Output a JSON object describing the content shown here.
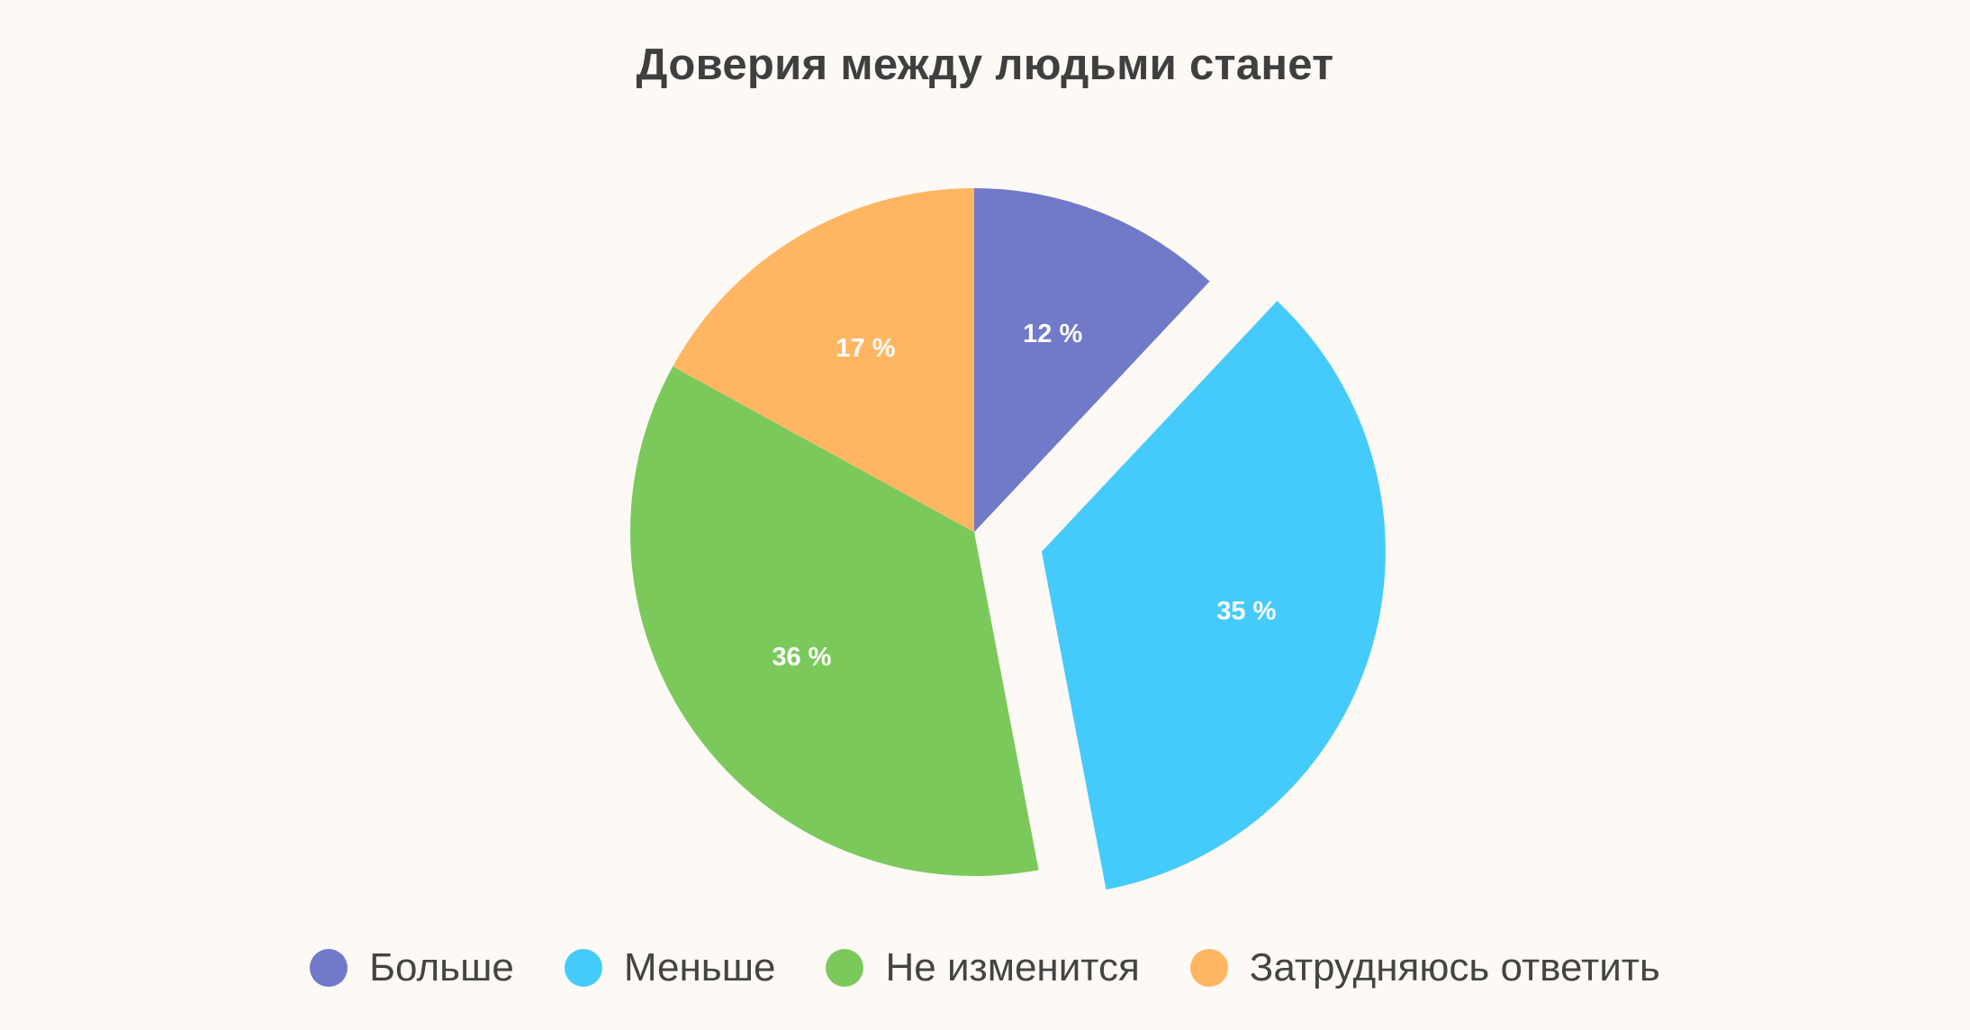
{
  "chart_data": {
    "type": "pie",
    "title": "Доверия между людьми станет",
    "categories": [
      "Больше",
      "Меньше",
      "Не изменится",
      "Затрудняюсь ответить"
    ],
    "values": [
      12,
      35,
      36,
      17
    ],
    "data_labels": [
      "12 %",
      "35 %",
      "36 %",
      "17 %"
    ],
    "colors": [
      "#7179c9",
      "#45cbfb",
      "#7bc95b",
      "#ffb663"
    ],
    "exploded": "Меньше",
    "start_angle_deg": 0,
    "direction": "clockwise",
    "legend_position": "bottom",
    "grid": false
  }
}
